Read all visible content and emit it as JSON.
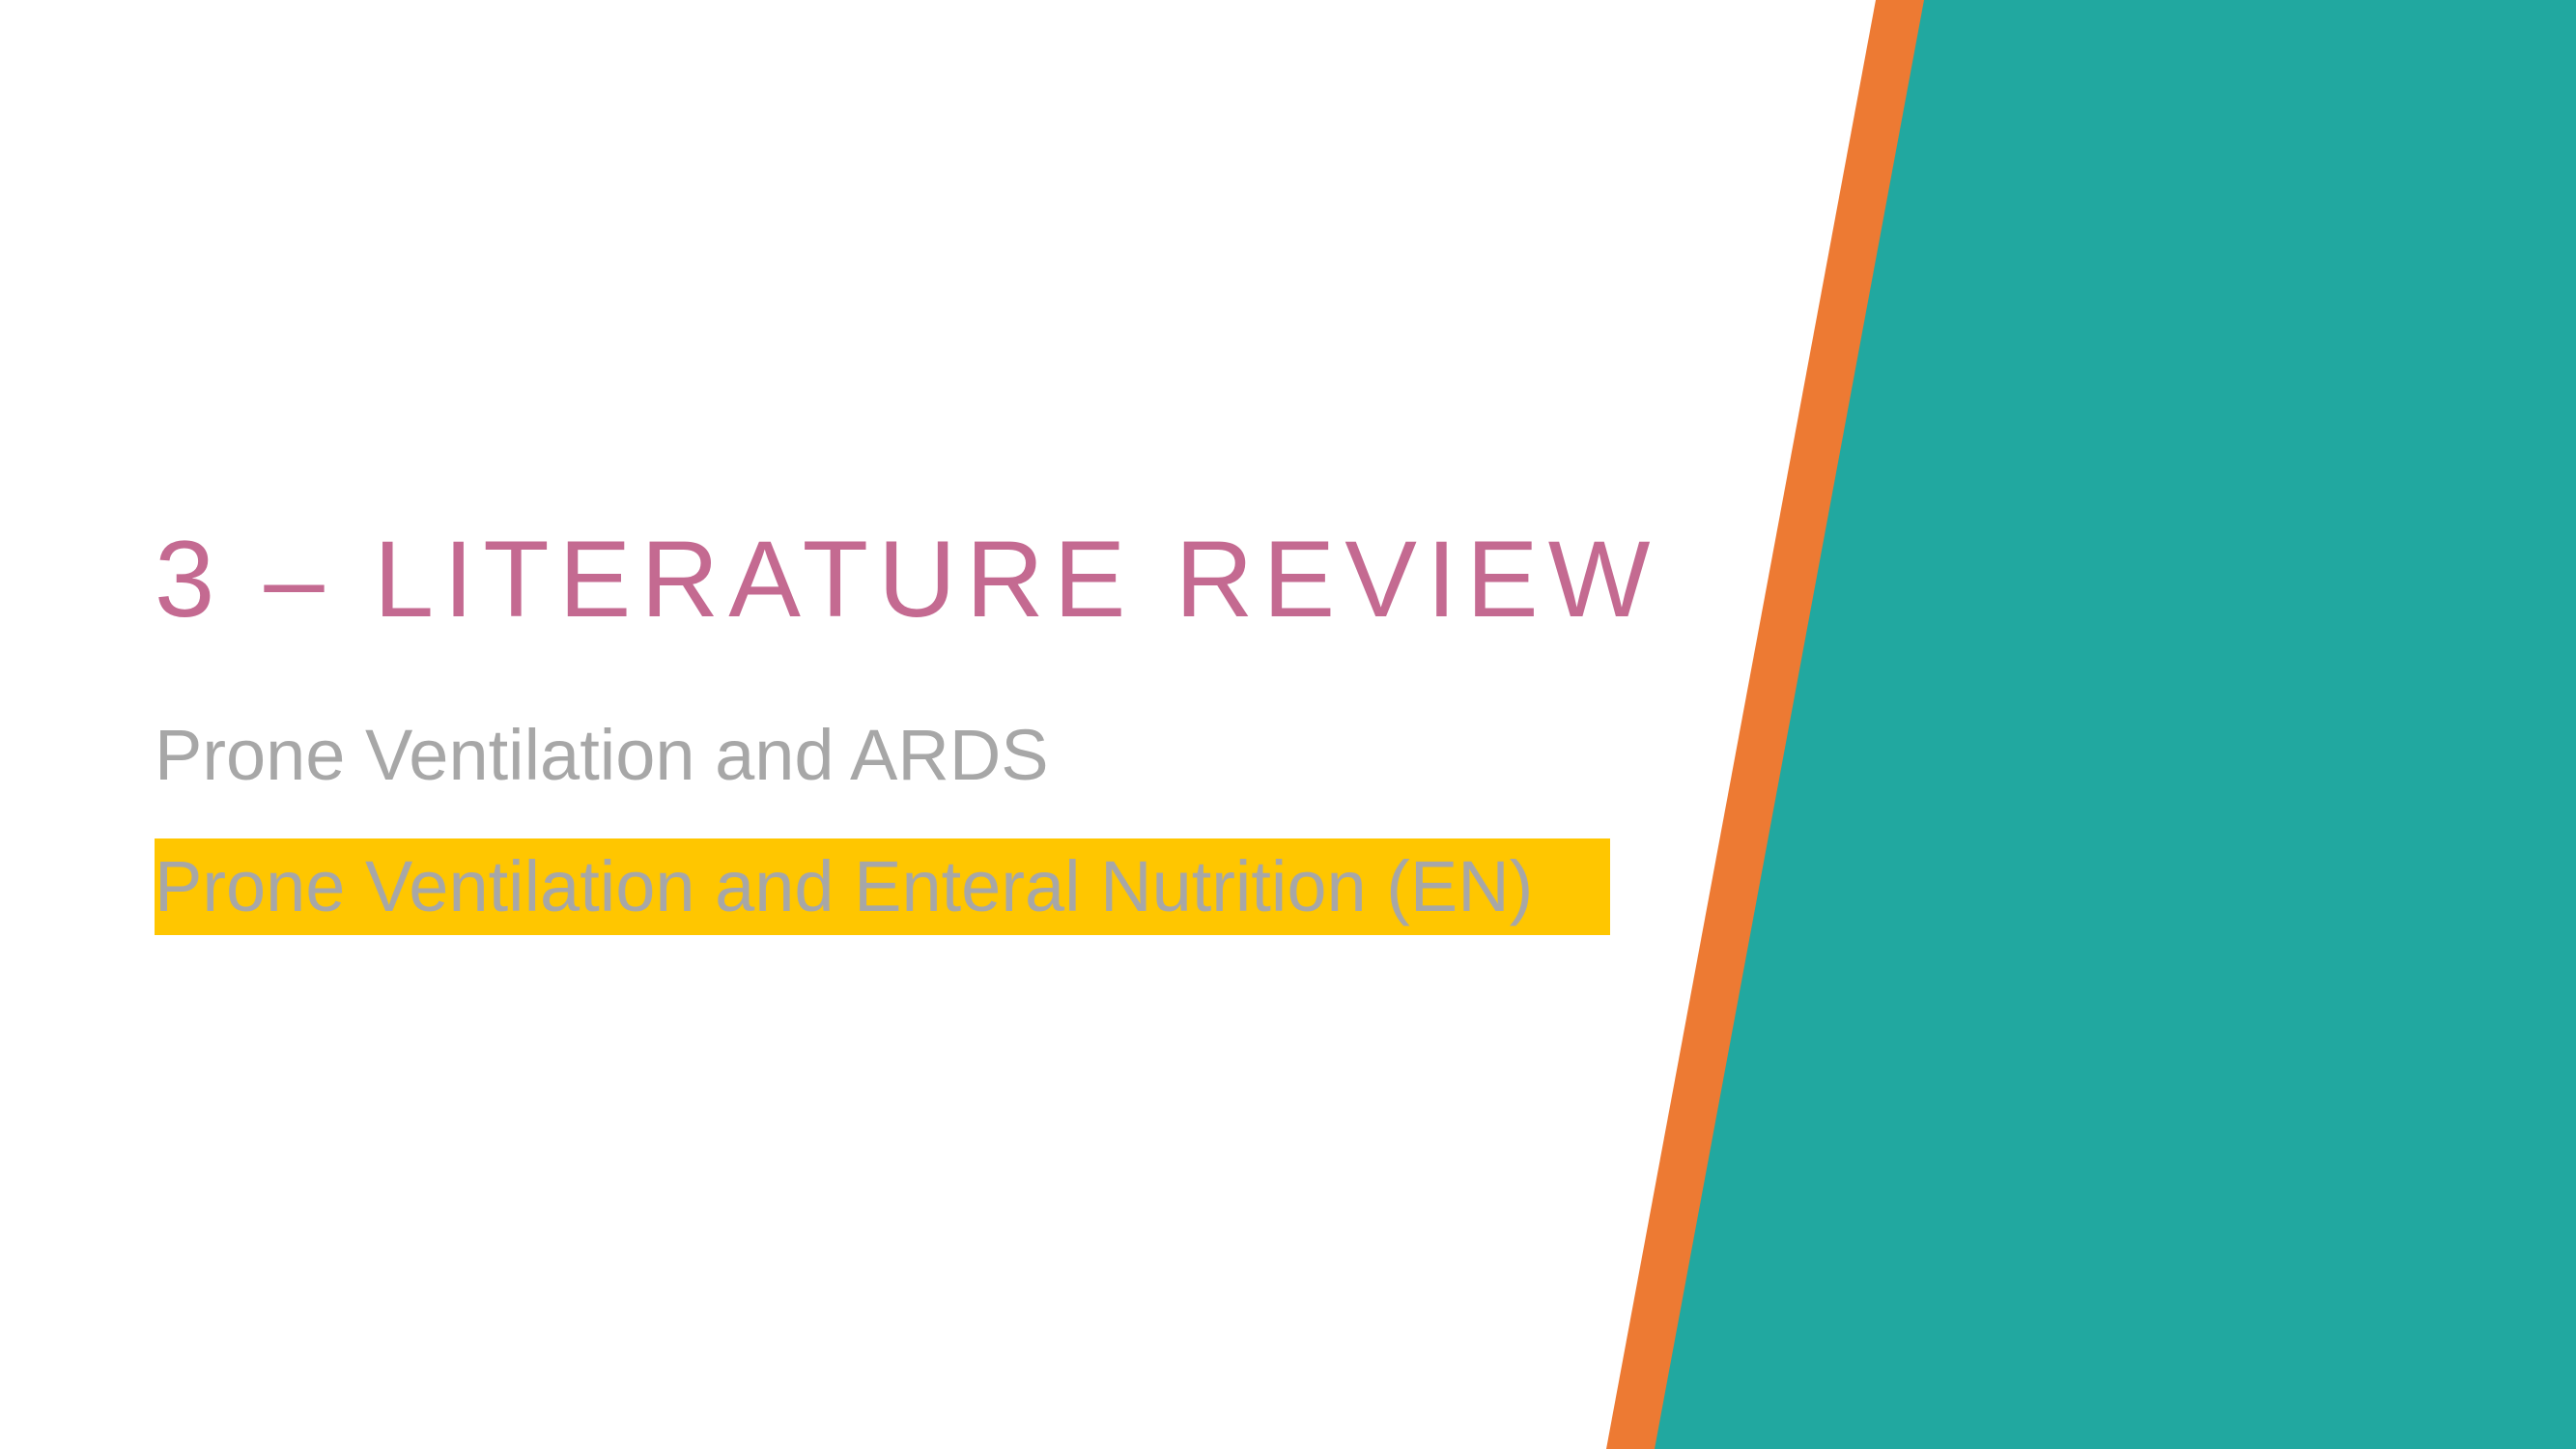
{
  "slide": {
    "title": "3 – LITERATURE REVIEW",
    "subtitles": [
      {
        "text": "Prone Ventilation and ARDS",
        "highlighted": false
      },
      {
        "text": "Prone Ventilation and Enteral Nutrition (EN)",
        "highlighted": true
      }
    ]
  },
  "colors": {
    "background": "#FFFFFF",
    "title": "#C46A91",
    "subtitle_text": "#A7A7A7",
    "highlight": "#FFC600",
    "accent_orange": "#ED7A33",
    "accent_teal": "#21A8A0"
  }
}
